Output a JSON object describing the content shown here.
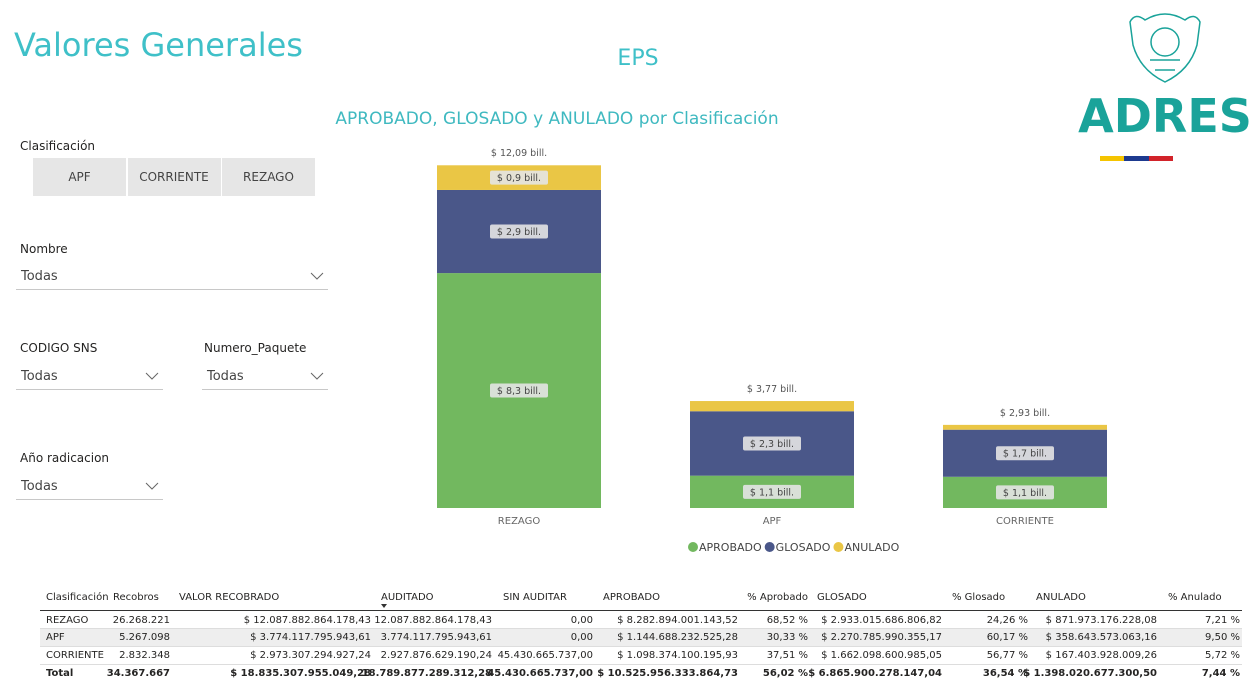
{
  "header": {
    "title": "Valores Generales",
    "subtitle": "EPS",
    "logo_text": "ADRES"
  },
  "filters": {
    "clasificacion": {
      "label": "Clasificación",
      "options": [
        "APF",
        "CORRIENTE",
        "REZAGO"
      ]
    },
    "nombre": {
      "label": "Nombre",
      "value": "Todas"
    },
    "codigo_sns": {
      "label": "CODIGO SNS",
      "value": "Todas"
    },
    "numero_paquete": {
      "label": "Numero_Paquete",
      "value": "Todas"
    },
    "anio_radicacion": {
      "label": "Año radicacion",
      "value": "Todas"
    }
  },
  "chart_data": {
    "type": "stacked_bar",
    "title": "APROBADO, GLOSADO y ANULADO por Clasificación",
    "categories": [
      "REZAGO",
      "APF",
      "CORRIENTE"
    ],
    "series": [
      {
        "name": "APROBADO",
        "color": "#72b85f",
        "values": [
          8.28,
          1.14,
          1.1
        ],
        "value_labels": [
          "$ 8,3 bill.",
          "$ 1,1 bill.",
          "$ 1,1 bill."
        ]
      },
      {
        "name": "GLOSADO",
        "color": "#4a5789",
        "values": [
          2.93,
          2.27,
          1.66
        ],
        "value_labels": [
          "$ 2,9 bill.",
          "$ 2,3 bill.",
          "$ 1,7 bill."
        ]
      },
      {
        "name": "ANULADO",
        "color": "#eac645",
        "values": [
          0.87,
          0.36,
          0.17
        ],
        "value_labels": [
          "$ 0,9 bill.",
          null,
          null
        ]
      }
    ],
    "totals": [
      12.09,
      3.77,
      2.93
    ],
    "total_labels": [
      "$ 12,09 bill.",
      "$ 3,77 bill.",
      "$ 2,93 bill."
    ],
    "legend": "bottom"
  },
  "table": {
    "header": [
      "Clasificación",
      "Recobros",
      "VALOR RECOBRADO",
      "AUDITADO",
      "SIN AUDITAR",
      "APROBADO",
      "% Aprobado",
      "GLOSADO",
      "% Glosado",
      "ANULADO",
      "% Anulado"
    ],
    "rows": [
      [
        "REZAGO",
        "26.268.221",
        "$ 12.087.882.864.178,43",
        "12.087.882.864.178,43",
        "0,00",
        "$ 8.282.894.001.143,52",
        "68,52 %",
        "$ 2.933.015.686.806,82",
        "24,26 %",
        "$ 871.973.176.228,08",
        "7,21 %"
      ],
      [
        "APF",
        "5.267.098",
        "$ 3.774.117.795.943,61",
        "3.774.117.795.943,61",
        "0,00",
        "$ 1.144.688.232.525,28",
        "30,33 %",
        "$ 2.270.785.990.355,17",
        "60,17 %",
        "$ 358.643.573.063,16",
        "9,50 %"
      ],
      [
        "CORRIENTE",
        "2.832.348",
        "$ 2.973.307.294.927,24",
        "2.927.876.629.190,24",
        "45.430.665.737,00",
        "$ 1.098.374.100.195,93",
        "37,51 %",
        "$ 1.662.098.600.985,05",
        "56,77 %",
        "$ 167.403.928.009,26",
        "5,72 %"
      ]
    ],
    "total": [
      "Total",
      "34.367.667",
      "$ 18.835.307.955.049,28",
      "18.789.877.289.312,28",
      "45.430.665.737,00",
      "$ 10.525.956.333.864,73",
      "56,02 %",
      "$ 6.865.900.278.147,04",
      "36,54 %",
      "$ 1.398.020.677.300,50",
      "7,44 %"
    ]
  }
}
